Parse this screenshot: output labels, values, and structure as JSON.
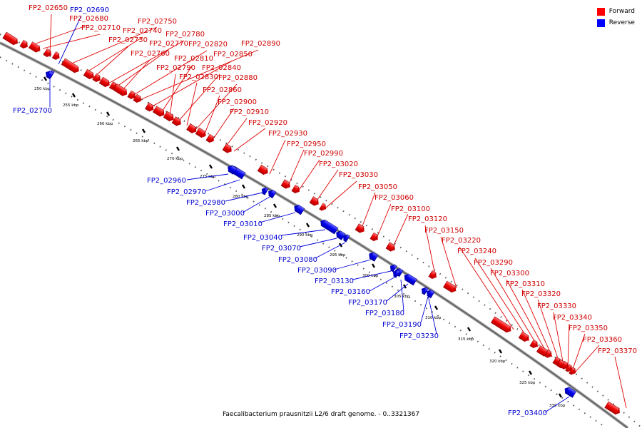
{
  "legend": {
    "forward": {
      "label": "Forward",
      "color": "#ff0000"
    },
    "reverse": {
      "label": "Reverse",
      "color": "#0000ff"
    }
  },
  "caption": "Faecalibacterium prausnitzii L2/6 draft genome. - 0..3321367",
  "ticks": [
    "250 kbp",
    "255 kbp",
    "260 kbp",
    "265 kbp",
    "270 kbp",
    "275 kbp",
    "280 kbp",
    "285 kbp",
    "290 kbp",
    "295 kbp",
    "300 kbp",
    "305 kbp",
    "310 kbp",
    "315 kbp",
    "320 kbp",
    "325 kbp",
    "330 kbp"
  ],
  "forward_genes": [
    "FP2_02650",
    "FP2_02680",
    "FP2_02710",
    "FP2_02750",
    "FP2_02740",
    "FP2_02730",
    "FP2_02780",
    "FP2_02770",
    "FP2_02760",
    "FP2_02820",
    "FP2_02890",
    "FP2_02850",
    "FP2_02810",
    "FP2_02790",
    "FP2_02840",
    "FP2_02830",
    "FP2_02880",
    "FP2_02860",
    "FP2_02900",
    "FP2_02910",
    "FP2_02920",
    "FP2_02930",
    "FP2_02950",
    "FP2_02990",
    "FP2_03020",
    "FP2_03030",
    "FP2_03050",
    "FP2_03060",
    "FP2_03100",
    "FP2_03120",
    "FP2_03150",
    "FP2_03220",
    "FP2_03240",
    "FP2_03290",
    "FP2_03300",
    "FP2_03310",
    "FP2_03320",
    "FP2_03330",
    "FP2_03340",
    "FP2_03350",
    "FP2_03360",
    "FP2_03370"
  ],
  "reverse_genes": [
    "FP2_02690",
    "FP2_02700",
    "FP2_02960",
    "FP2_02970",
    "FP2_02980",
    "FP2_03000",
    "FP2_03010",
    "FP2_03040",
    "FP2_03070",
    "FP2_03080",
    "FP2_03090",
    "FP2_03130",
    "FP2_03160",
    "FP2_03170",
    "FP2_03180",
    "FP2_03190",
    "FP2_03230",
    "FP2_03400"
  ]
}
